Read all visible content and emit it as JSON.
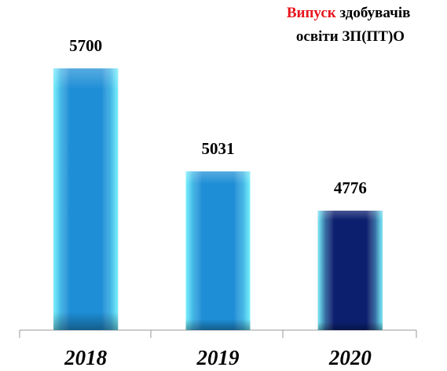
{
  "chart_data": {
    "type": "bar",
    "title": [
      "Випуск",
      "здобувачів",
      "освіти ЗП(ПТ)О"
    ],
    "title_highlight_color": "#e8141b",
    "categories": [
      "2018",
      "2019",
      "2020"
    ],
    "values": [
      5700,
      5031,
      4776
    ],
    "colors": [
      "#1e8fd6",
      "#1e8fd6",
      "#0b1f6e"
    ],
    "ylim": [
      4000,
      5700
    ]
  }
}
